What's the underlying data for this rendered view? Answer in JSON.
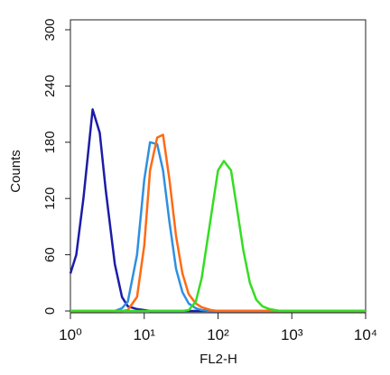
{
  "chart_data": {
    "type": "line",
    "log_x": true,
    "x_label": "FL2-H",
    "y_label": "Counts",
    "x": [
      1,
      1.2,
      1.5,
      2,
      2.5,
      3,
      4,
      5,
      6,
      8,
      10,
      12,
      15,
      18,
      22,
      27,
      33,
      40,
      50,
      60,
      80,
      100,
      120,
      150,
      180,
      220,
      270,
      330,
      400,
      500,
      700,
      1000,
      2000,
      5000,
      10000
    ],
    "series": [
      {
        "color": "#1c1ca8",
        "values": [
          40,
          60,
          120,
          215,
          190,
          130,
          50,
          15,
          5,
          2,
          1,
          0,
          0,
          0,
          0,
          0,
          0,
          0,
          0,
          0,
          0,
          0,
          0,
          0,
          0,
          0,
          0,
          0,
          0,
          0,
          0,
          0,
          0,
          0,
          0
        ]
      },
      {
        "color": "#2e90e0",
        "values": [
          0,
          0,
          0,
          0,
          0,
          0,
          0,
          3,
          10,
          60,
          140,
          180,
          178,
          150,
          95,
          45,
          20,
          8,
          3,
          1,
          0,
          0,
          0,
          0,
          0,
          0,
          0,
          0,
          0,
          0,
          0,
          0,
          0,
          0,
          0
        ]
      },
      {
        "color": "#ff6a14",
        "values": [
          0,
          0,
          0,
          0,
          0,
          0,
          0,
          0,
          1,
          15,
          70,
          150,
          185,
          188,
          140,
          80,
          40,
          18,
          8,
          4,
          1,
          0,
          0,
          0,
          0,
          0,
          0,
          0,
          0,
          0,
          0,
          0,
          0,
          0,
          0
        ]
      },
      {
        "color": "#35dd22",
        "values": [
          0,
          0,
          0,
          0,
          0,
          0,
          0,
          0,
          0,
          0,
          0,
          0,
          0,
          0,
          0,
          0,
          0,
          1,
          10,
          35,
          100,
          150,
          160,
          150,
          110,
          65,
          30,
          12,
          5,
          2,
          0,
          0,
          0,
          0,
          0
        ]
      }
    ],
    "xlim": [
      1,
      10000
    ],
    "xticks": [
      {
        "value": 1,
        "label": "10⁰"
      },
      {
        "value": 10,
        "label": "10¹"
      },
      {
        "value": 100,
        "label": "10²"
      },
      {
        "value": 1000,
        "label": "10³"
      },
      {
        "value": 10000,
        "label": "10⁴"
      }
    ],
    "ylim": [
      0,
      300
    ],
    "yticks": [
      0,
      60,
      120,
      180,
      240,
      300
    ]
  }
}
